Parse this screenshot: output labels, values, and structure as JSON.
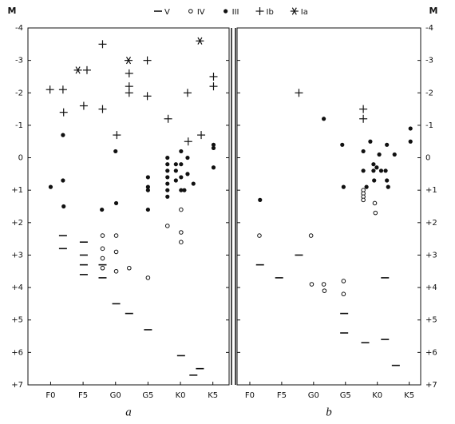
{
  "chart_data": [
    {
      "type": "scatter",
      "ylabel": "M",
      "caption": "a",
      "y_axis_side": "left",
      "xlim": [
        -3.5,
        27.5
      ],
      "ylim": [
        7,
        -4
      ],
      "xticks": [
        {
          "value": 0,
          "label": "F0"
        },
        {
          "value": 5,
          "label": "F5"
        },
        {
          "value": 10,
          "label": "G0"
        },
        {
          "value": 15,
          "label": "G5"
        },
        {
          "value": 20,
          "label": "K0"
        },
        {
          "value": 25,
          "label": "K5"
        }
      ],
      "yticks": [
        -4,
        -3,
        -2,
        -1,
        0,
        {
          "value": 1,
          "label": "+1"
        },
        {
          "value": 2,
          "label": "+2"
        },
        {
          "value": 3,
          "label": "+3"
        },
        {
          "value": 4,
          "label": "+4"
        },
        {
          "value": 5,
          "label": "+5"
        },
        {
          "value": 6,
          "label": "+6"
        },
        {
          "value": 7,
          "label": "+7"
        }
      ],
      "series": [
        {
          "name": "V",
          "color": "#111",
          "marker": "dash",
          "x": [
            1.9,
            1.9,
            5.1,
            5.1,
            5.1,
            5.1,
            8,
            8,
            10.1,
            12.1,
            15,
            20.1,
            22,
            23
          ],
          "values": [
            2.4,
            2.8,
            2.6,
            3.0,
            3.3,
            3.6,
            3.3,
            3.7,
            4.5,
            4.8,
            5.3,
            6.1,
            6.7,
            6.5
          ]
        },
        {
          "name": "IV",
          "color": "#111",
          "marker": "open-circle",
          "x": [
            8,
            8,
            8,
            8,
            10.1,
            10.1,
            10.1,
            12.1,
            15,
            18,
            20.1,
            20.1,
            20.1
          ],
          "values": [
            2.4,
            2.8,
            3.1,
            3.4,
            2.4,
            2.9,
            3.5,
            3.4,
            3.7,
            2.1,
            1.6,
            2.3,
            2.6
          ]
        },
        {
          "name": "III",
          "color": "#111",
          "marker": "dot",
          "x": [
            0,
            1.9,
            1.9,
            2.0,
            7.9,
            10,
            10.1,
            15,
            15,
            15,
            15,
            18,
            18,
            18,
            18,
            18,
            18,
            18,
            19.3,
            19.3,
            19.3,
            20.1,
            20.1,
            20.1,
            20.1,
            20.6,
            21.1,
            21.1,
            22,
            25.1,
            25.1,
            25.1
          ],
          "values": [
            0.9,
            -0.7,
            0.7,
            1.5,
            1.6,
            -0.2,
            1.4,
            0.6,
            0.9,
            1.0,
            1.6,
            0,
            0.2,
            0.4,
            0.6,
            0.8,
            1.0,
            1.2,
            0.2,
            0.4,
            0.7,
            -0.2,
            0.2,
            0.6,
            1.0,
            1.0,
            0,
            0.5,
            0.8,
            -0.4,
            -0.3,
            0.3
          ]
        },
        {
          "name": "Ib",
          "color": "#111",
          "marker": "plus",
          "x": [
            -0.1,
            1.9,
            2.0,
            5.6,
            5.1,
            8.0,
            8.0,
            10.2,
            12.1,
            12.1,
            12.1,
            14.9,
            14.9,
            18.1,
            21.1,
            21.2,
            23.2,
            25.1,
            25.1
          ],
          "values": [
            -2.1,
            -2.1,
            -1.4,
            -2.7,
            -1.6,
            -3.5,
            -1.5,
            -0.7,
            -2.6,
            -2.2,
            -2.0,
            -3.0,
            -1.9,
            -1.2,
            -2.0,
            -0.5,
            -0.7,
            -2.5,
            -2.2
          ]
        },
        {
          "name": "Ia",
          "color": "#111",
          "marker": "asterisk",
          "x": [
            4.2,
            12.0,
            23.0
          ],
          "values": [
            -2.7,
            -3.0,
            -3.6
          ]
        }
      ]
    },
    {
      "type": "scatter",
      "ylabel": "M",
      "caption": "b",
      "y_axis_side": "right",
      "xlim": [
        -2,
        26.8
      ],
      "ylim": [
        7,
        -4
      ],
      "xticks": [
        {
          "value": 0,
          "label": "F0"
        },
        {
          "value": 5,
          "label": "F5"
        },
        {
          "value": 10,
          "label": "G0"
        },
        {
          "value": 15,
          "label": "G5"
        },
        {
          "value": 20,
          "label": "K0"
        },
        {
          "value": 25,
          "label": "K5"
        }
      ],
      "yticks": [
        -4,
        -3,
        -2,
        -1,
        0,
        {
          "value": 1,
          "label": "+1"
        },
        {
          "value": 2,
          "label": "+2"
        },
        {
          "value": 3,
          "label": "+3"
        },
        {
          "value": 4,
          "label": "+4"
        },
        {
          "value": 5,
          "label": "+5"
        },
        {
          "value": 6,
          "label": "+6"
        },
        {
          "value": 7,
          "label": "+7"
        }
      ],
      "series": [
        {
          "name": "V",
          "color": "#111",
          "marker": "dash",
          "x": [
            1.6,
            4.6,
            7.7,
            14.8,
            14.8,
            18.1,
            21.2,
            21.2,
            22.9
          ],
          "values": [
            3.3,
            3.7,
            3.0,
            4.8,
            5.4,
            5.7,
            5.6,
            3.7,
            6.4
          ]
        },
        {
          "name": "IV",
          "color": "#111",
          "marker": "open-circle",
          "x": [
            1.5,
            9.6,
            9.7,
            11.6,
            11.7,
            14.7,
            14.7,
            17.8,
            17.8,
            17.8,
            17.8,
            19.6,
            19.7
          ],
          "values": [
            2.4,
            2.4,
            3.9,
            3.9,
            4.1,
            3.8,
            4.2,
            1.0,
            1.1,
            1.2,
            1.3,
            1.4,
            1.7
          ]
        },
        {
          "name": "III",
          "color": "#111",
          "marker": "dot",
          "x": [
            1.6,
            11.6,
            14.5,
            14.7,
            17.8,
            17.8,
            18.9,
            19.4,
            19.4,
            19.9,
            20.3,
            20.6,
            21.3,
            21.5,
            21.5,
            21.7,
            19.5,
            18.3,
            22.7,
            25.2,
            25.2
          ],
          "values": [
            1.3,
            -1.2,
            -0.4,
            0.9,
            -0.2,
            0.4,
            -0.5,
            0.4,
            0.2,
            0.3,
            -0.1,
            0.4,
            0.4,
            -0.4,
            0.7,
            0.9,
            0.7,
            0.9,
            -0.1,
            -0.9,
            -0.5
          ]
        },
        {
          "name": "Ib",
          "color": "#111",
          "marker": "plus",
          "x": [
            7.7,
            17.8,
            17.8
          ],
          "values": [
            -2.0,
            -1.5,
            -1.2
          ]
        }
      ]
    }
  ]
}
